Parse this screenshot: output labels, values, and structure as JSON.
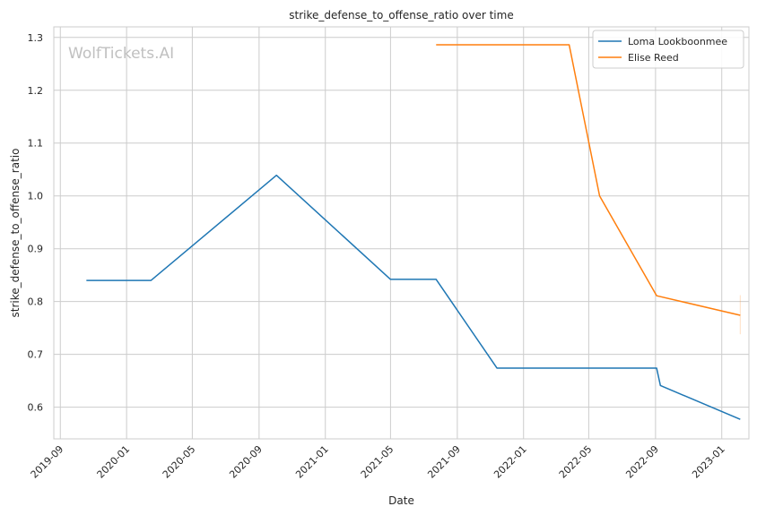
{
  "chart_data": {
    "type": "line",
    "title": "strike_defense_to_offense_ratio over time",
    "xlabel": "Date",
    "ylabel": "strike_defense_to_offense_ratio",
    "watermark": "WolfTickets.AI",
    "x_ticks": [
      "2019-09",
      "2020-01",
      "2020-05",
      "2020-09",
      "2021-01",
      "2021-05",
      "2021-09",
      "2022-01",
      "2022-05",
      "2022-09",
      "2023-01"
    ],
    "y_ticks": [
      "0.6",
      "0.7",
      "0.8",
      "0.9",
      "1.0",
      "1.1",
      "1.2",
      "1.3"
    ],
    "xlim": [
      "2019-08-20",
      "2023-02-20"
    ],
    "ylim": [
      0.54,
      1.32
    ],
    "grid": true,
    "legend_position": "top-right",
    "series": [
      {
        "name": "Loma Lookboonmee",
        "color": "#1f77b4",
        "points": [
          {
            "x": "2019-10-19",
            "y": 0.84
          },
          {
            "x": "2020-02-15",
            "y": 0.84
          },
          {
            "x": "2020-10-03",
            "y": 1.039
          },
          {
            "x": "2021-05-01",
            "y": 0.842
          },
          {
            "x": "2021-07-24",
            "y": 0.842
          },
          {
            "x": "2021-11-13",
            "y": 0.674
          },
          {
            "x": "2022-09-03",
            "y": 0.674
          },
          {
            "x": "2022-09-10",
            "y": 0.641
          },
          {
            "x": "2023-02-04",
            "y": 0.577
          }
        ]
      },
      {
        "name": "Elise Reed",
        "color": "#ff7f0e",
        "points": [
          {
            "x": "2021-07-24",
            "y": 1.286
          },
          {
            "x": "2022-03-26",
            "y": 1.286
          },
          {
            "x": "2022-05-21",
            "y": 1.0
          },
          {
            "x": "2022-09-03",
            "y": 0.811
          },
          {
            "x": "2023-02-04",
            "y": 0.774
          }
        ],
        "error_bar": {
          "x": "2023-02-04",
          "low": 0.738,
          "high": 0.812
        }
      }
    ]
  }
}
